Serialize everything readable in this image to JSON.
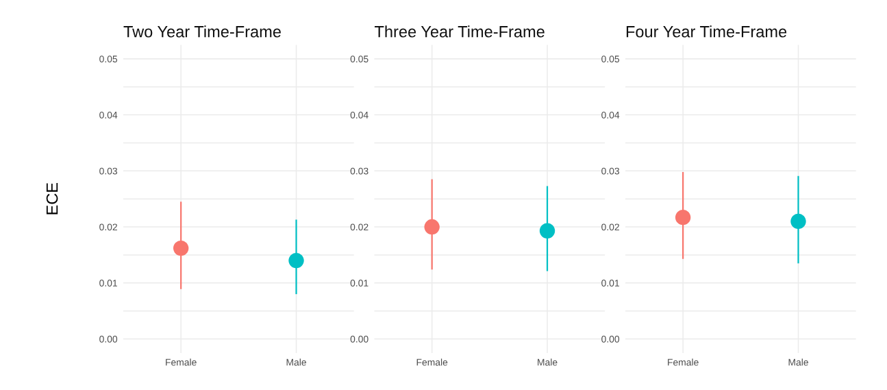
{
  "chart_data": [
    {
      "type": "scatter",
      "title": "Two Year Time-Frame",
      "ylabel": "ECE",
      "categories": [
        "Female",
        "Male"
      ],
      "values": [
        0.0162,
        0.014
      ],
      "colors": [
        "#f8766d",
        "#00bfc4"
      ],
      "errors": [
        [
          0.0089,
          0.0245
        ],
        [
          0.008,
          0.0213
        ]
      ],
      "marker": "circle",
      "grid": true,
      "ylim": [
        -0.0025,
        0.0525
      ],
      "yticks": [
        {
          "value": 0,
          "label": "0.00"
        },
        {
          "value": 0.005,
          "label": null
        },
        {
          "value": 0.01,
          "label": "0.01"
        },
        {
          "value": 0.015,
          "label": null
        },
        {
          "value": 0.02,
          "label": "0.02"
        },
        {
          "value": 0.025,
          "label": null
        },
        {
          "value": 0.03,
          "label": "0.03"
        },
        {
          "value": 0.035,
          "label": null
        },
        {
          "value": 0.04,
          "label": "0.04"
        },
        {
          "value": 0.045,
          "label": null
        },
        {
          "value": 0.05,
          "label": "0.05"
        }
      ]
    },
    {
      "type": "scatter",
      "title": "Three Year Time-Frame",
      "categories": [
        "Female",
        "Male"
      ],
      "values": [
        0.02,
        0.0193
      ],
      "colors": [
        "#f8766d",
        "#00bfc4"
      ],
      "errors": [
        [
          0.0124,
          0.0285
        ],
        [
          0.0121,
          0.0273
        ]
      ],
      "marker": "circle",
      "grid": true,
      "ylim": [
        -0.0025,
        0.0525
      ],
      "yticks": [
        {
          "value": 0,
          "label": "0.00"
        },
        {
          "value": 0.005,
          "label": null
        },
        {
          "value": 0.01,
          "label": "0.01"
        },
        {
          "value": 0.015,
          "label": null
        },
        {
          "value": 0.02,
          "label": "0.02"
        },
        {
          "value": 0.025,
          "label": null
        },
        {
          "value": 0.03,
          "label": "0.03"
        },
        {
          "value": 0.035,
          "label": null
        },
        {
          "value": 0.04,
          "label": "0.04"
        },
        {
          "value": 0.045,
          "label": null
        },
        {
          "value": 0.05,
          "label": "0.05"
        }
      ]
    },
    {
      "type": "scatter",
      "title": "Four Year Time-Frame",
      "categories": [
        "Female",
        "Male"
      ],
      "values": [
        0.0217,
        0.021
      ],
      "colors": [
        "#f8766d",
        "#00bfc4"
      ],
      "errors": [
        [
          0.0143,
          0.0298
        ],
        [
          0.0135,
          0.0291
        ]
      ],
      "marker": "circle",
      "grid": true,
      "ylim": [
        -0.0025,
        0.0525
      ],
      "yticks": [
        {
          "value": 0,
          "label": "0.00"
        },
        {
          "value": 0.005,
          "label": null
        },
        {
          "value": 0.01,
          "label": "0.01"
        },
        {
          "value": 0.015,
          "label": null
        },
        {
          "value": 0.02,
          "label": "0.02"
        },
        {
          "value": 0.025,
          "label": null
        },
        {
          "value": 0.03,
          "label": "0.03"
        },
        {
          "value": 0.035,
          "label": null
        },
        {
          "value": 0.04,
          "label": "0.04"
        },
        {
          "value": 0.045,
          "label": null
        },
        {
          "value": 0.05,
          "label": "0.05"
        }
      ]
    }
  ]
}
